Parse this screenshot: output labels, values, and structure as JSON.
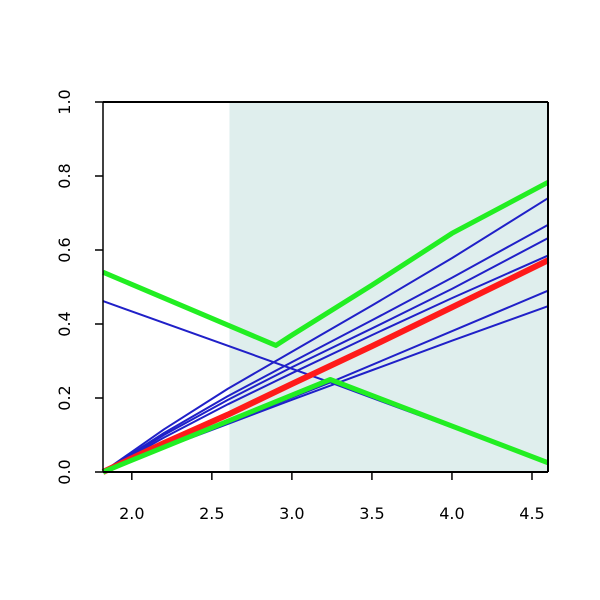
{
  "chart_data": {
    "type": "line",
    "title": "",
    "xlabel": "",
    "ylabel": "",
    "xlim": [
      1.82,
      4.6
    ],
    "ylim": [
      0,
      1.0
    ],
    "xticks": [
      "2.0",
      "2.5",
      "3.0",
      "3.5",
      "4.0",
      "4.5"
    ],
    "xtick_values": [
      2.0,
      2.5,
      3.0,
      3.5,
      4.0,
      4.5
    ],
    "yticks": [
      "0.0",
      "0.2",
      "0.4",
      "0.6",
      "0.8",
      "1.0"
    ],
    "ytick_values": [
      0.0,
      0.2,
      0.4,
      0.6,
      0.8,
      1.0
    ],
    "grid": false,
    "legend": "none",
    "shaded_region": {
      "x_from": 2.61,
      "x_to": 4.6,
      "color": "#dfeeed"
    },
    "series": [
      {
        "color": "#2020c8",
        "width": 2,
        "x": [
          1.82,
          3.24,
          4.6
        ],
        "y": [
          0.462,
          0.242,
          0.025
        ]
      },
      {
        "color": "#2020c8",
        "width": 2,
        "x": [
          1.82,
          3.24,
          4.6
        ],
        "y": [
          0.0,
          0.242,
          0.49
        ]
      },
      {
        "color": "#2020c8",
        "width": 2,
        "x": [
          1.82,
          2.2,
          2.6,
          3.0,
          3.5,
          4.0,
          4.6
        ],
        "y": [
          0.0,
          0.065,
          0.13,
          0.195,
          0.275,
          0.355,
          0.448
        ]
      },
      {
        "color": "#2020c8",
        "width": 2,
        "x": [
          1.82,
          2.2,
          2.6,
          3.0,
          3.5,
          4.0,
          4.6
        ],
        "y": [
          0.0,
          0.093,
          0.183,
          0.267,
          0.37,
          0.47,
          0.585
        ]
      },
      {
        "color": "#2020c8",
        "width": 2,
        "x": [
          1.82,
          2.2,
          2.6,
          3.0,
          3.5,
          4.0,
          4.6
        ],
        "y": [
          0.0,
          0.1,
          0.195,
          0.283,
          0.388,
          0.495,
          0.632
        ]
      },
      {
        "color": "#2020c8",
        "width": 2,
        "x": [
          1.82,
          2.2,
          2.6,
          3.0,
          3.5,
          4.0,
          4.6
        ],
        "y": [
          0.0,
          0.105,
          0.205,
          0.297,
          0.41,
          0.525,
          0.668
        ]
      },
      {
        "color": "#2020c8",
        "width": 2,
        "x": [
          1.82,
          2.2,
          2.6,
          3.0,
          3.5,
          4.0,
          4.6
        ],
        "y": [
          0.0,
          0.115,
          0.225,
          0.325,
          0.45,
          0.578,
          0.74
        ]
      },
      {
        "color": "#ff1a1a",
        "width": 6,
        "x": [
          1.82,
          2.2,
          2.6,
          3.0,
          3.5,
          4.0,
          4.6
        ],
        "y": [
          0.0,
          0.078,
          0.155,
          0.238,
          0.34,
          0.445,
          0.572
        ]
      },
      {
        "color": "#22ee22",
        "width": 5,
        "x": [
          1.82,
          2.9,
          3.0,
          3.5,
          4.0,
          4.6
        ],
        "y": [
          0.54,
          0.342,
          0.37,
          0.505,
          0.645,
          0.783
        ]
      },
      {
        "color": "#22ee22",
        "width": 5,
        "x": [
          1.82,
          3.24,
          4.6
        ],
        "y": [
          0.0,
          0.25,
          0.025
        ]
      }
    ]
  }
}
